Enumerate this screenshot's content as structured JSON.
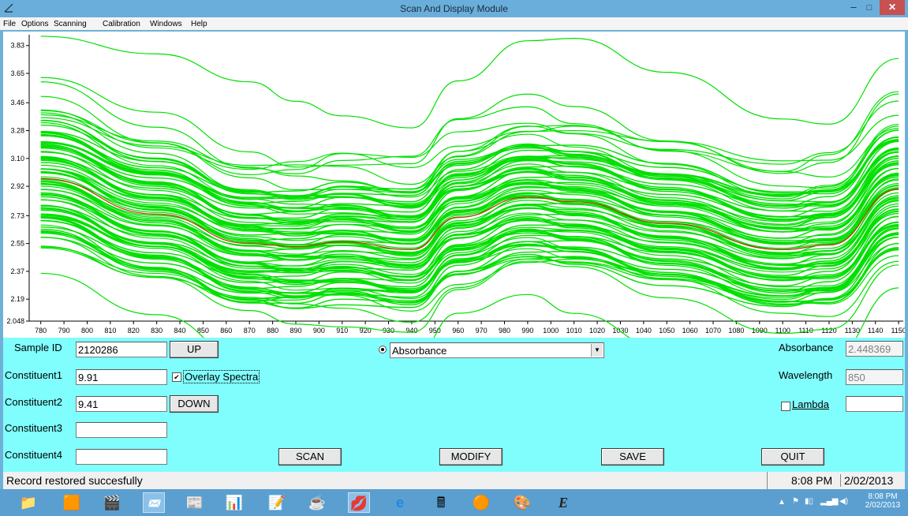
{
  "window": {
    "title": "Scan And Display Module",
    "min": "–",
    "max": "□",
    "close": "✕"
  },
  "menu": [
    "File",
    "Options",
    "Scanning",
    "Calibration",
    "Windows",
    "Help"
  ],
  "chart_data": {
    "type": "line",
    "title": "",
    "xlabel": "",
    "ylabel": "",
    "xlim": [
      775,
      1152
    ],
    "ylim": [
      2.048,
      3.9
    ],
    "y_ticks": [
      "3.83",
      "3.65",
      "3.46",
      "3.28",
      "3.10",
      "2.92",
      "2.73",
      "2.55",
      "2.37",
      "2.19",
      "2.048"
    ],
    "y_tick_values": [
      3.83,
      3.65,
      3.46,
      3.28,
      3.1,
      2.92,
      2.73,
      2.55,
      2.37,
      2.19,
      2.048
    ],
    "x_ticks": [
      780,
      790,
      800,
      810,
      820,
      830,
      840,
      850,
      860,
      870,
      880,
      890,
      900,
      910,
      920,
      930,
      940,
      950,
      960,
      970,
      980,
      990,
      1000,
      1010,
      1020,
      1030,
      1040,
      1050,
      1060,
      1070,
      1080,
      1090,
      1100,
      1110,
      1120,
      1130,
      1140,
      1150
    ],
    "x": [
      780,
      830,
      870,
      890,
      910,
      940,
      960,
      990,
      1010,
      1050,
      1100,
      1120,
      1150
    ],
    "shape_offsets": [
      0,
      -0.22,
      -0.42,
      -0.44,
      -0.4,
      -0.46,
      -0.24,
      0.04,
      0.0,
      -0.12,
      -0.28,
      -0.22,
      0.38
    ],
    "series_offsets": [
      0.92,
      0.58,
      0.55,
      0.52,
      0.5,
      0.46,
      0.43,
      0.4,
      0.37,
      0.34,
      0.31,
      0.28,
      0.25,
      0.22,
      0.19,
      0.16,
      0.13,
      0.1,
      0.07,
      0.04,
      0.01,
      -0.02,
      -0.05,
      -0.08,
      -0.11,
      -0.14,
      -0.17,
      -0.2,
      -0.23,
      -0.26,
      -0.29,
      -0.32,
      -0.35,
      -0.38,
      -0.41,
      -0.48,
      -0.72
    ],
    "series_color": "#00e000",
    "highlight_series": {
      "color": "#c03000",
      "values": [
        2.97,
        2.74,
        2.55,
        2.53,
        2.56,
        2.51,
        2.72,
        2.85,
        2.82,
        2.68,
        2.51,
        2.54,
        2.9
      ]
    },
    "grid": false
  },
  "panel": {
    "sample_id_label": "Sample ID",
    "sample_id_value": "2120286",
    "up_label": "UP",
    "down_label": "DOWN",
    "constituent1_label": "Constituent1",
    "constituent1_value": "9.91",
    "constituent2_label": "Constituent2",
    "constituent2_value": "9.41",
    "constituent3_label": "Constituent3",
    "constituent3_value": "",
    "constituent4_label": "Constituent4",
    "constituent4_value": "",
    "overlay_label": "Overlay Spectra",
    "overlay_checked": true,
    "mode_selected": "Absorbance",
    "absorbance_label": "Absorbance",
    "absorbance_value": "2.448369",
    "wavelength_label": "Wavelength",
    "wavelength_value": "850",
    "lambda_label": "Lambda",
    "lambda_value": "",
    "scan_label": "SCAN",
    "modify_label": "MODIFY",
    "save_label": "SAVE",
    "quit_label": "QUIT"
  },
  "status": {
    "message": "Record restored succesfully",
    "time": "8:08 PM",
    "date": "2/02/2013"
  },
  "taskbar": {
    "clock_time": "8:08 PM",
    "clock_date": "2/02/2013",
    "apps": [
      "file-explorer-icon",
      "office-icon",
      "media-icon",
      "outlook-icon",
      "publisher-icon",
      "excel-icon",
      "word-icon",
      "java-icon",
      "lips-app-icon",
      "internet-explorer-icon",
      "calculator-icon",
      "chrome-icon",
      "paint-icon",
      "e-app-icon"
    ]
  }
}
